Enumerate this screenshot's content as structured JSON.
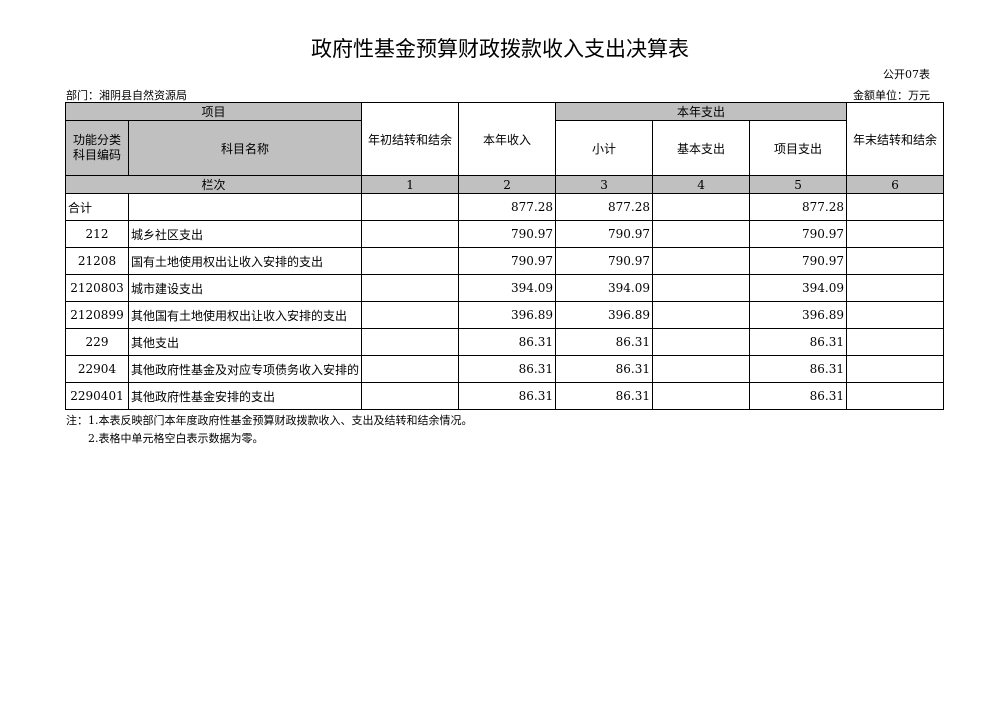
{
  "header": {
    "title": "政府性基金预算财政拨款收入支出决算表",
    "form_no": "公开07表",
    "department": "部门：湘阴县自然资源局",
    "unit": "金额单位：万元"
  },
  "table": {
    "head": {
      "project": "项目",
      "begin_balance": "年初结转和结余",
      "income": "本年收入",
      "expense": "本年支出",
      "end_balance": "年末结转和结余",
      "code": "功能分类\n科目编码",
      "name": "科目名称",
      "subtotal": "小计",
      "basic": "基本支出",
      "project_exp": "项目支出",
      "column_no": "栏次",
      "column_numbers": [
        1,
        2,
        3,
        4,
        5,
        6
      ]
    },
    "rows": [
      {
        "code": "合计",
        "income": 877.28,
        "subtotal": 877.28,
        "project": 877.28
      },
      {
        "code": "212",
        "name": "城乡社区支出",
        "income": 790.97,
        "subtotal": 790.97,
        "project": 790.97
      },
      {
        "code": "21208",
        "name": "国有土地使用权出让收入安排的支出",
        "income": 790.97,
        "subtotal": 790.97,
        "project": 790.97
      },
      {
        "code": "2120803",
        "name": "城市建设支出",
        "income": 394.09,
        "subtotal": 394.09,
        "project": 394.09
      },
      {
        "code": "2120899",
        "name": "其他国有土地使用权出让收入安排的支出",
        "income": 396.89,
        "subtotal": 396.89,
        "project": 396.89
      },
      {
        "code": "229",
        "name": "其他支出",
        "income": 86.31,
        "subtotal": 86.31,
        "project": 86.31
      },
      {
        "code": "22904",
        "name": "其他政府性基金及对应专项债务收入安排的",
        "income": 86.31,
        "subtotal": 86.31,
        "project": 86.31
      },
      {
        "code": "2290401",
        "name": "其他政府性基金安排的支出",
        "income": 86.31,
        "subtotal": 86.31,
        "project": 86.31
      }
    ]
  },
  "notes": [
    "注：1.本表反映部门本年度政府性基金预算财政拨款收入、支出及结转和结余情况。",
    "2.表格中单元格空白表示数据为零。"
  ]
}
